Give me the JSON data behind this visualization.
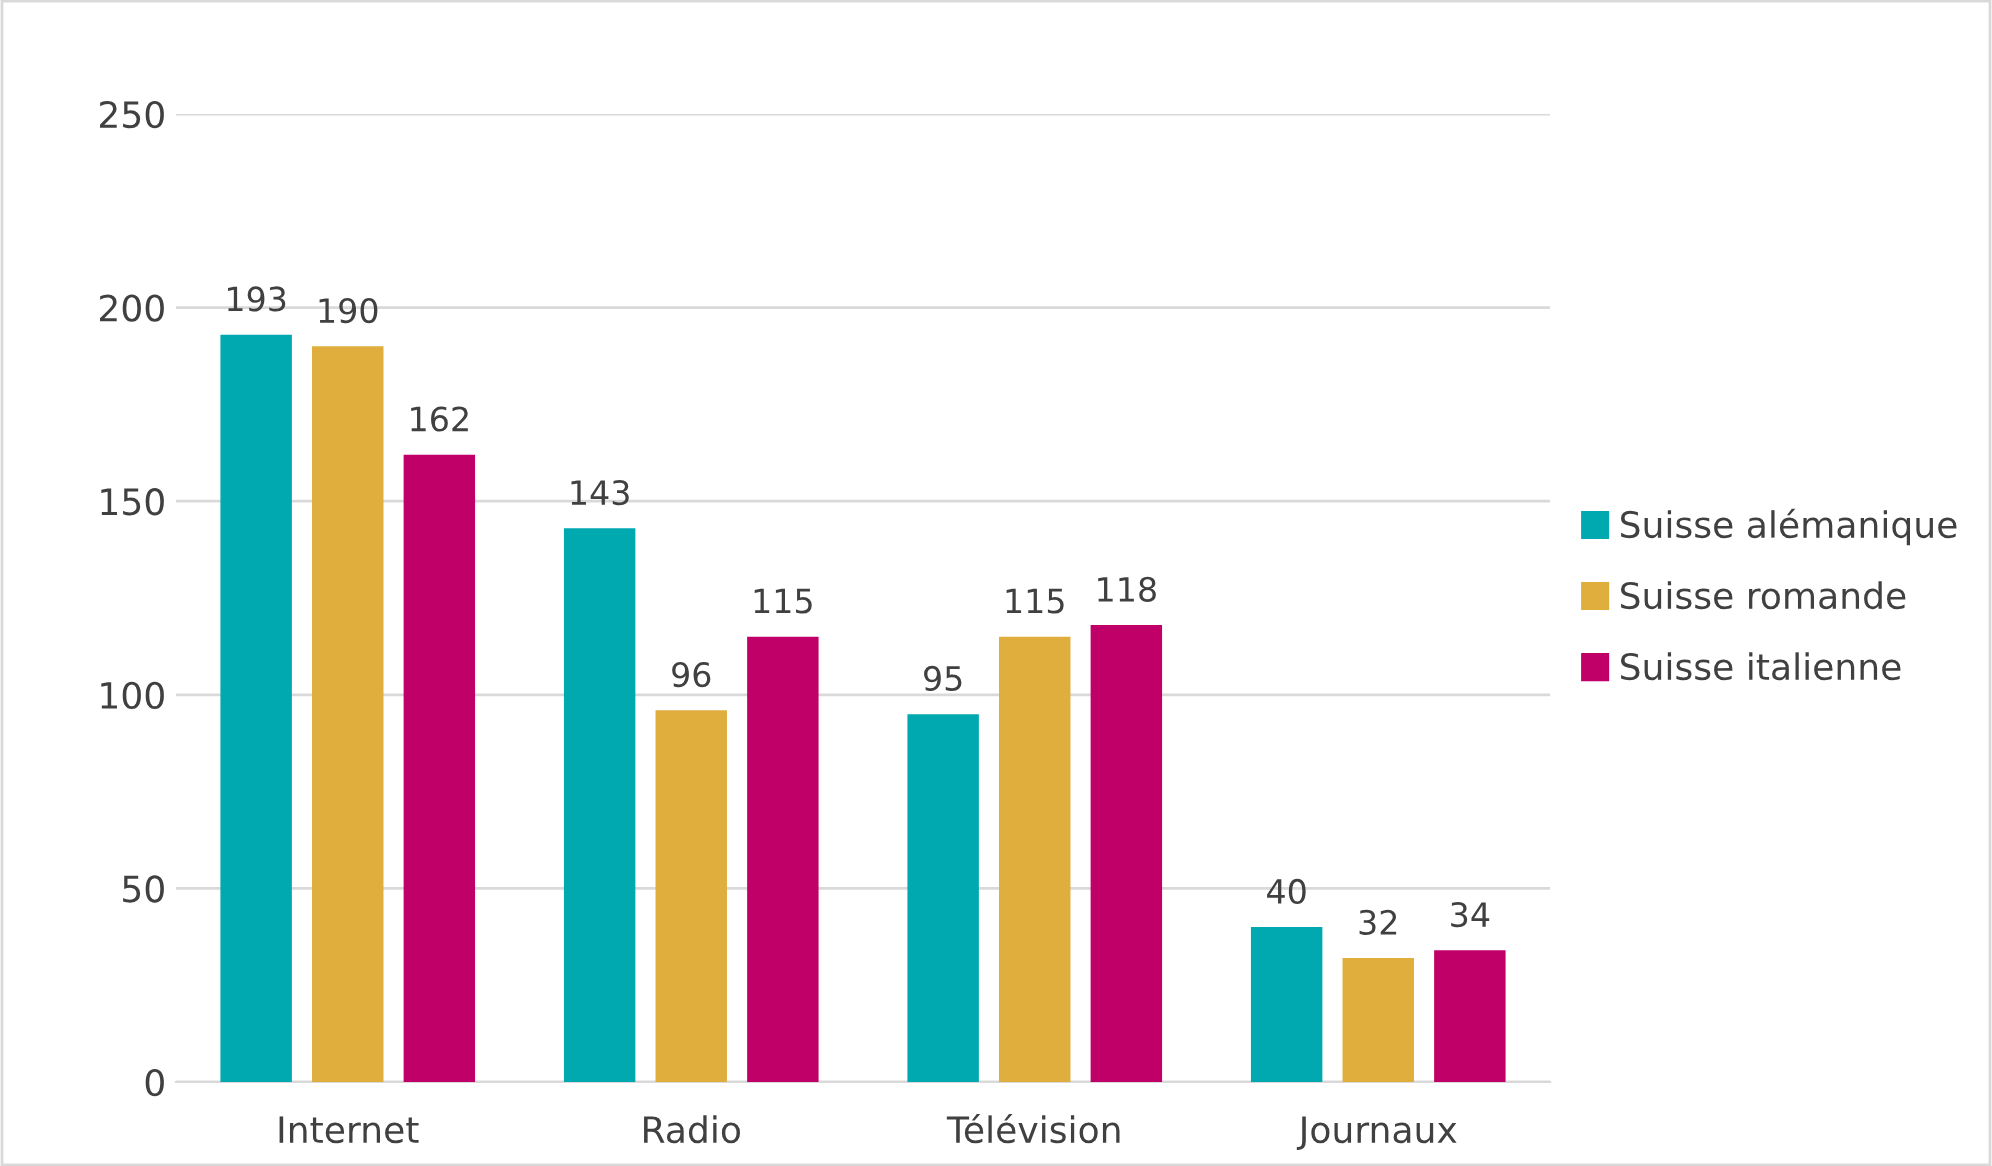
{
  "chart_data": {
    "type": "bar",
    "categories": [
      "Internet",
      "Radio",
      "Télévision",
      "Journaux"
    ],
    "series": [
      {
        "name": "Suisse alémanique",
        "color": "#00a9b0",
        "values": [
          193,
          143,
          95,
          40
        ]
      },
      {
        "name": "Suisse romande",
        "color": "#e0ae3c",
        "values": [
          190,
          96,
          115,
          32
        ]
      },
      {
        "name": "Suisse italienne",
        "color": "#c00068",
        "values": [
          162,
          115,
          118,
          34
        ]
      }
    ],
    "ylim": [
      0,
      250
    ],
    "yticks": [
      0,
      50,
      100,
      150,
      200,
      250
    ],
    "grid": "y",
    "legend": "right",
    "data_labels": true
  }
}
